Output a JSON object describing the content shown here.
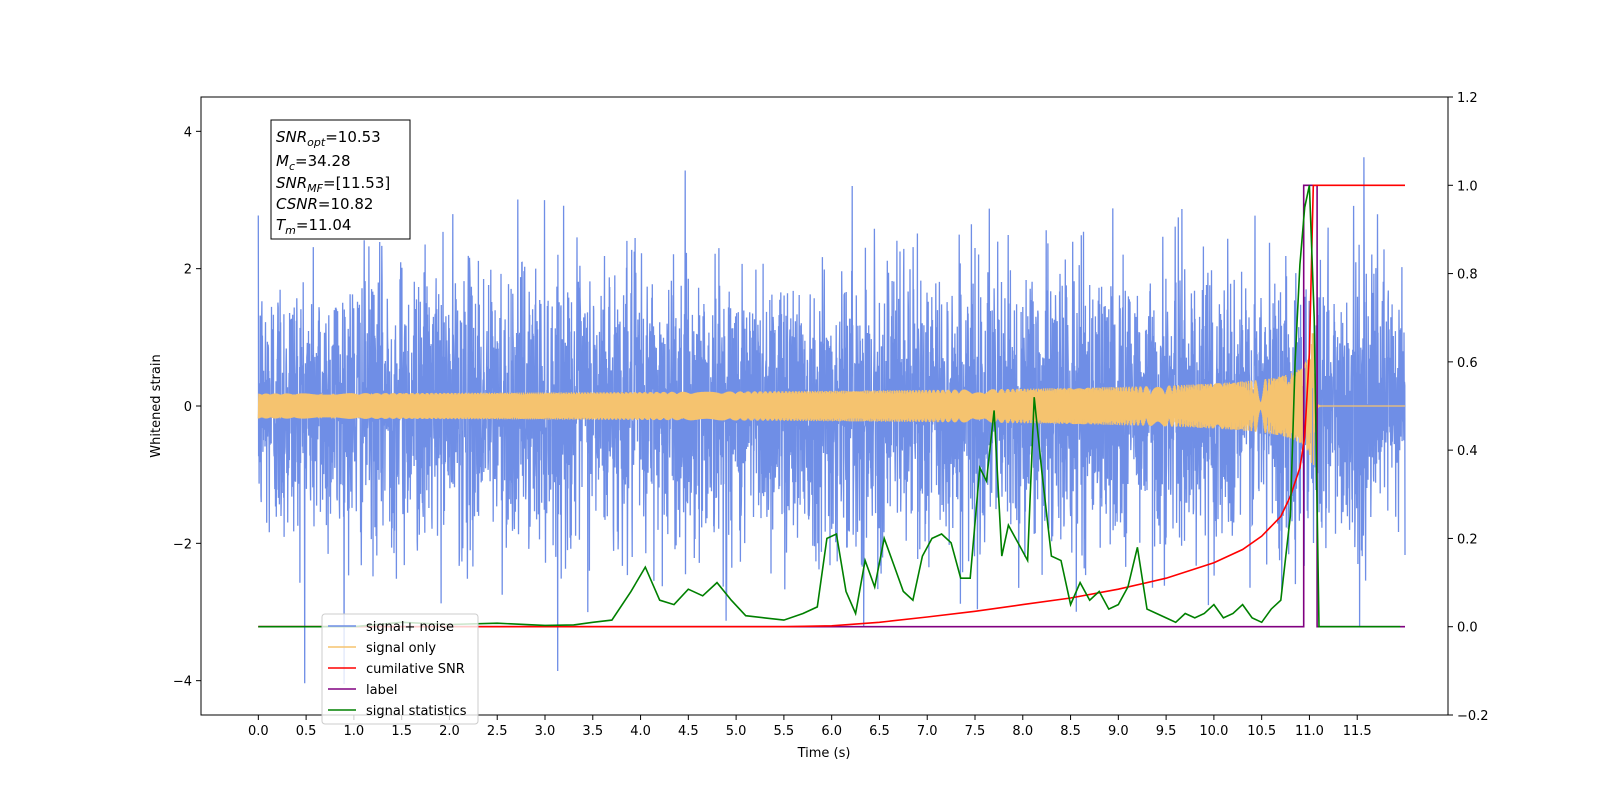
{
  "chart_data": {
    "type": "line",
    "xlabel": "Time (s)",
    "ylabel": "Whitened strain",
    "xlim": [
      -0.6,
      12.45
    ],
    "ylim": [
      -4.5,
      4.5
    ],
    "y2lim": [
      -0.2,
      1.2
    ],
    "xticks": [
      "0.0",
      "0.5",
      "1.0",
      "1.5",
      "2.0",
      "2.5",
      "3.0",
      "3.5",
      "4.0",
      "4.5",
      "5.0",
      "5.5",
      "6.0",
      "6.5",
      "7.0",
      "7.5",
      "8.0",
      "8.5",
      "9.0",
      "9.5",
      "10.0",
      "10.5",
      "11.0",
      "11.5"
    ],
    "xtick_values": [
      0.0,
      0.5,
      1.0,
      1.5,
      2.0,
      2.5,
      3.0,
      3.5,
      4.0,
      4.5,
      5.0,
      5.5,
      6.0,
      6.5,
      7.0,
      7.5,
      8.0,
      8.5,
      9.0,
      9.5,
      10.0,
      10.5,
      11.0,
      11.5
    ],
    "yticks": [
      "4",
      "2",
      "0",
      "−2",
      "−4"
    ],
    "ytick_values": [
      4,
      2,
      0,
      -2,
      -4
    ],
    "y2ticks": [
      "1.2",
      "1.0",
      "0.8",
      "0.6",
      "0.4",
      "0.2",
      "0.0",
      "−0.2"
    ],
    "y2tick_values": [
      1.2,
      1.0,
      0.8,
      0.6,
      0.4,
      0.2,
      0.0,
      -0.2
    ],
    "grid": false,
    "legend_position": "lower-left",
    "stats_box": {
      "snr_opt": {
        "label": "SNR",
        "sub": "opt",
        "value": "=10.53"
      },
      "mc": {
        "label": "M",
        "sub": "c",
        "value": "=34.28"
      },
      "snr_mf": {
        "label": "SNR",
        "sub": "MF",
        "value": "=[11.53]"
      },
      "csnr": {
        "label": "CSNR",
        "sub": "",
        "value": "=10.82"
      },
      "tm": {
        "label": "T",
        "sub": "m",
        "value": "=11.04"
      }
    },
    "series": [
      {
        "name": "signal+ noise",
        "color": "#6f8ee6",
        "axis": "left",
        "t_start": 0.0,
        "t_end": 12.0,
        "noise_sigma": 1.0,
        "note_values": "white noise, amplitude range about -4.1 to 4.1"
      },
      {
        "name": "signal only",
        "color": "#f5c36f",
        "axis": "left",
        "t_start": 0.0,
        "t_end": 12.0,
        "merger_time": 11.04,
        "peak_amplitude": 1.05
      },
      {
        "name": "cumilative SNR",
        "color": "#ff0000",
        "axis": "right",
        "x": [
          0.0,
          5.5,
          6.0,
          6.5,
          7.0,
          7.5,
          8.0,
          8.5,
          9.0,
          9.5,
          10.0,
          10.3,
          10.5,
          10.7,
          10.8,
          10.9,
          10.95,
          11.0,
          11.04,
          11.1,
          12.0
        ],
        "values": [
          0.0,
          0.0,
          0.002,
          0.01,
          0.022,
          0.035,
          0.05,
          0.065,
          0.085,
          0.11,
          0.145,
          0.175,
          0.205,
          0.25,
          0.295,
          0.36,
          0.43,
          0.62,
          1.0,
          1.0,
          1.0
        ]
      },
      {
        "name": "label",
        "color": "#800080",
        "axis": "right",
        "x": [
          0.0,
          10.94,
          10.94,
          11.08,
          11.08,
          12.0
        ],
        "values": [
          0.0,
          0.0,
          1.0,
          1.0,
          0.0,
          0.0
        ]
      },
      {
        "name": "signal statistics",
        "color": "#008000",
        "axis": "right",
        "x": [
          0.0,
          0.5,
          1.0,
          1.5,
          2.0,
          2.5,
          3.0,
          3.3,
          3.5,
          3.7,
          3.9,
          4.05,
          4.2,
          4.35,
          4.5,
          4.65,
          4.8,
          4.95,
          5.1,
          5.3,
          5.5,
          5.7,
          5.85,
          5.95,
          6.05,
          6.15,
          6.25,
          6.35,
          6.45,
          6.55,
          6.65,
          6.75,
          6.85,
          6.95,
          7.05,
          7.15,
          7.25,
          7.35,
          7.45,
          7.55,
          7.62,
          7.7,
          7.78,
          7.85,
          7.95,
          8.05,
          8.12,
          8.2,
          8.3,
          8.4,
          8.5,
          8.6,
          8.7,
          8.8,
          8.9,
          9.0,
          9.1,
          9.2,
          9.3,
          9.4,
          9.5,
          9.6,
          9.7,
          9.8,
          9.9,
          10.0,
          10.1,
          10.2,
          10.3,
          10.4,
          10.5,
          10.6,
          10.7,
          10.8,
          10.85,
          10.9,
          10.95,
          11.0,
          11.05,
          11.1,
          11.2,
          11.5,
          11.95
        ],
        "values": [
          0.0,
          0.0,
          0.0,
          0.01,
          0.005,
          0.008,
          0.003,
          0.004,
          0.01,
          0.015,
          0.08,
          0.135,
          0.06,
          0.05,
          0.085,
          0.07,
          0.1,
          0.06,
          0.025,
          0.02,
          0.015,
          0.03,
          0.045,
          0.2,
          0.21,
          0.08,
          0.03,
          0.15,
          0.09,
          0.2,
          0.14,
          0.08,
          0.06,
          0.16,
          0.2,
          0.21,
          0.19,
          0.11,
          0.11,
          0.36,
          0.33,
          0.49,
          0.16,
          0.23,
          0.19,
          0.15,
          0.52,
          0.35,
          0.16,
          0.15,
          0.05,
          0.1,
          0.06,
          0.08,
          0.04,
          0.05,
          0.09,
          0.18,
          0.04,
          0.03,
          0.02,
          0.01,
          0.03,
          0.02,
          0.03,
          0.05,
          0.02,
          0.03,
          0.05,
          0.02,
          0.01,
          0.04,
          0.06,
          0.25,
          0.6,
          0.82,
          0.95,
          1.0,
          0.7,
          0.0,
          0.0,
          0.0,
          0.0
        ]
      }
    ]
  }
}
